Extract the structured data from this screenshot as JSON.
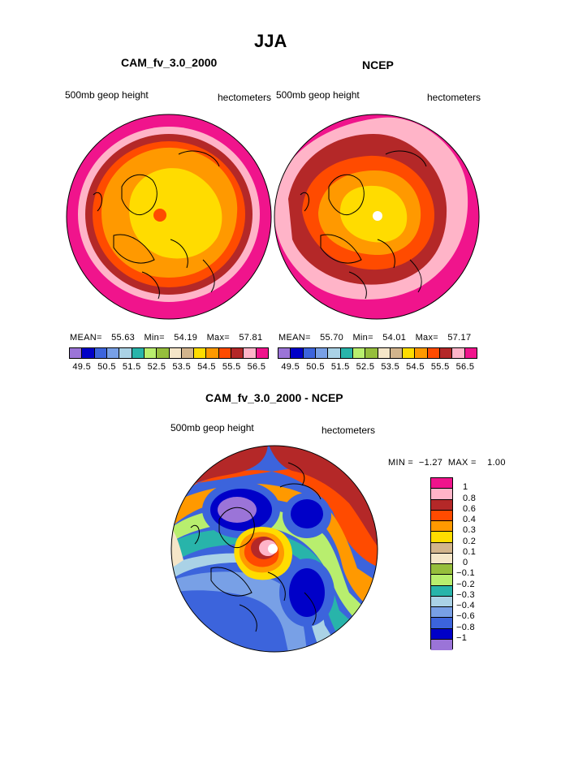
{
  "title": "JJA",
  "panel_left": {
    "model": "CAM_fv_3.0_2000",
    "variable": "500mb geop height",
    "units": "hectometers",
    "stats": {
      "mean_label": "MEAN=",
      "mean": "55.63",
      "min_label": "Min=",
      "min": "54.19",
      "max_label": "Max=",
      "max": "57.81"
    }
  },
  "panel_right": {
    "model": "NCEP",
    "variable": "500mb geop height",
    "units": "hectometers",
    "stats": {
      "mean_label": "MEAN=",
      "mean": "55.70",
      "min_label": "Min=",
      "min": "54.01",
      "max_label": "Max=",
      "max": "57.17"
    }
  },
  "panel_diff": {
    "model": "CAM_fv_3.0_2000 - NCEP",
    "variable": "500mb geop height",
    "units": "hectometers",
    "minmax": "MIN =  −1.27  MAX =    1.00"
  },
  "colorbar_top": {
    "colors": [
      "#9b74d8",
      "#0000c8",
      "#3c64dc",
      "#78a0e6",
      "#aad2e6",
      "#28b4aa",
      "#b8ee6e",
      "#96be3c",
      "#f5e6c8",
      "#d2b48c",
      "#ffdc00",
      "#ff9900",
      "#ff4b00",
      "#b42828",
      "#ffb4c8",
      "#f0148c"
    ],
    "labels": [
      "49.5",
      "50.5",
      "51.5",
      "52.5",
      "53.5",
      "54.5",
      "55.5",
      "56.5"
    ]
  },
  "colorbar_diff": {
    "colors": [
      "#f0148c",
      "#ffb4c8",
      "#b42828",
      "#ff4b00",
      "#ff9900",
      "#ffdc00",
      "#d2b48c",
      "#f5e6c8",
      "#96be3c",
      "#b8ee6e",
      "#28b4aa",
      "#aad2e6",
      "#78a0e6",
      "#3c64dc",
      "#0000c8",
      "#9b74d8"
    ],
    "labels": [
      "1",
      "0.8",
      "0.6",
      "0.4",
      "0.3",
      "0.2",
      "0.1",
      "0",
      "−0.1",
      "−0.2",
      "−0.3",
      "−0.4",
      "−0.6",
      "−0.8",
      "−1"
    ]
  }
}
